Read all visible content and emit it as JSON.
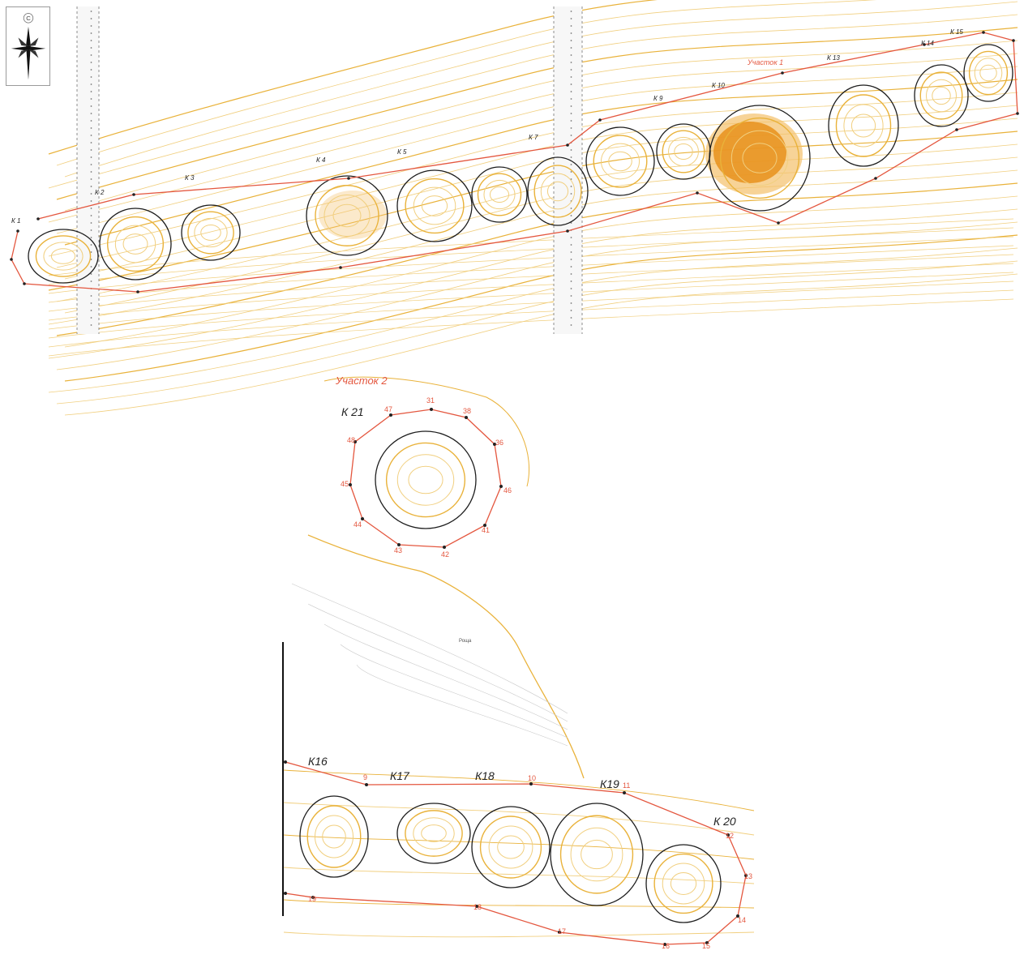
{
  "map": {
    "north_label": "С",
    "colors": {
      "contour": "#e9b23a",
      "contour_light": "#f1cf7f",
      "contour_gray": "#c9c9c9",
      "boundary": "#e4573f",
      "circle": "#1d1d1d",
      "heat": "#e8901b",
      "heat_light": "#f4c16b",
      "road": "#8c8c8c"
    },
    "sections": [
      {
        "id": "s1",
        "label": "Участок 1"
      },
      {
        "id": "s2",
        "label": "Участок 2"
      }
    ],
    "borrow_pits": [
      {
        "id": "K1",
        "label": "К 1"
      },
      {
        "id": "K2",
        "label": "К 2"
      },
      {
        "id": "K3",
        "label": "К 3"
      },
      {
        "id": "K4",
        "label": "К 4"
      },
      {
        "id": "K5",
        "label": "К 5"
      },
      {
        "id": "K7",
        "label": "К 7"
      },
      {
        "id": "K9",
        "label": "К 9"
      },
      {
        "id": "K10",
        "label": "К 10"
      },
      {
        "id": "K13",
        "label": "К 13"
      },
      {
        "id": "K14",
        "label": "К 14"
      },
      {
        "id": "K15",
        "label": "К 15"
      },
      {
        "id": "K16",
        "label": "К16"
      },
      {
        "id": "K17",
        "label": "К17"
      },
      {
        "id": "K18",
        "label": "К18"
      },
      {
        "id": "K19",
        "label": "К19"
      },
      {
        "id": "K20",
        "label": "К 20"
      },
      {
        "id": "K21",
        "label": "К 21"
      }
    ],
    "vertex_numbers_section2": [
      "31",
      "38",
      "36",
      "46",
      "41",
      "42",
      "43",
      "44",
      "45",
      "48",
      "47"
    ],
    "vertex_numbers_lower": [
      "9",
      "10",
      "11",
      "12",
      "13",
      "14",
      "15",
      "16",
      "17",
      "18",
      "19"
    ],
    "terrain_label": "Роща"
  }
}
